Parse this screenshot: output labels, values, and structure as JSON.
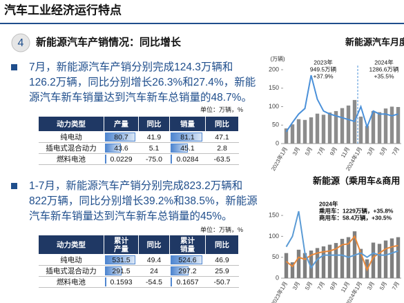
{
  "header": {
    "title": "汽车工业经济运行特点"
  },
  "section": {
    "number": "4",
    "title": "新能源汽车产销情况：同比增长"
  },
  "bullets": [
    {
      "lines": [
        "7月，新能源汽车产销分别完成124.3万辆和",
        "126.2万辆，同比分别增长26.3%和27.4%，新能",
        "源汽车新车销量达到汽车新车总销量的48.7%。"
      ],
      "unit": "单位：万辆，%",
      "table": {
        "columns": [
          "动力类型",
          "产量",
          "同比",
          "销量",
          "同比"
        ],
        "data_bar_columns": [
          1,
          3
        ],
        "rows": [
          [
            "纯电动",
            "80.7",
            "41.9",
            "81.1",
            "47.1"
          ],
          [
            "插电式混合动力",
            "43.6",
            "5.1",
            "45.1",
            "2.8"
          ],
          [
            "燃料电池",
            "0.0229",
            "-75.0",
            "0.0284",
            "-63.5"
          ]
        ]
      }
    },
    {
      "lines": [
        "1-7月，新能源汽车产销分别完成823.2万辆和",
        "822万辆，同比分别增长39.2%和38.5%，新能源",
        "汽车新车销量达到汽车新车总销量的45%。"
      ],
      "unit": "单位：万辆，%",
      "table": {
        "columns": [
          "动力类型",
          "累计产量",
          "同比",
          "累计销量",
          "同比"
        ],
        "data_bar_columns": [
          1,
          3
        ],
        "rows": [
          [
            "纯电动",
            "531.5",
            "49.4",
            "524.6",
            "46.9"
          ],
          [
            "插电式混合动力",
            "291.5",
            "24",
            "297.2",
            "25.9"
          ],
          [
            "燃料电池",
            "0.1593",
            "-54.5",
            "0.1657",
            "-50.7"
          ]
        ]
      }
    }
  ],
  "chart_data": [
    {
      "type": "bar_line",
      "title": "新能源汽车月度",
      "y_label": "(万辆)",
      "annotations": [
        {
          "lines": [
            "2023年",
            "949.5万辆",
            "+37.9%"
          ]
        },
        {
          "lines": [
            "2024年",
            "1286.6万辆",
            "+35.5%"
          ]
        }
      ],
      "categories": [
        "2023年1月",
        null,
        "3月",
        null,
        "5月",
        null,
        "7月",
        null,
        "9月",
        null,
        "11月",
        null,
        "2024年1月",
        null,
        "3月",
        null,
        "5月",
        null,
        "7月"
      ],
      "divider_index": 12,
      "ylim": [
        0,
        200
      ],
      "yticks": [
        0,
        50,
        100,
        150,
        200
      ],
      "series": [
        {
          "type": "bar",
          "color": "#8c8c8c",
          "values": [
            41,
            52,
            66,
            64,
            71,
            81,
            78,
            84,
            88,
            96,
            103,
            118,
            73,
            48,
            88,
            85,
            95,
            100,
            99
          ]
        },
        {
          "type": "line",
          "color": "#4a90d9",
          "values": [
            32,
            57,
            80,
            95,
            185,
            120,
            88,
            80,
            75,
            70,
            65,
            60,
            100,
            45,
            88,
            80,
            80,
            75,
            80
          ]
        }
      ]
    },
    {
      "type": "bar_line",
      "title": "新能源（乘用车&商用",
      "annotations": [
        {
          "lines": [
            "2024年",
            "乘用车：1229万辆，+35.8%",
            "商用车：58.4万辆，+30.5%"
          ]
        }
      ],
      "categories": [
        "2023年1月",
        null,
        "3月",
        null,
        "5月",
        null,
        "7月",
        null,
        "9月",
        null,
        "11月",
        null,
        "2024年1月",
        null,
        "3月",
        null,
        "5月",
        null,
        "7月"
      ],
      "ylim": [
        0,
        170
      ],
      "yticks": [
        0,
        50,
        100,
        150
      ],
      "series": [
        {
          "type": "bar",
          "color": "#7f7f7f",
          "values": [
            60,
            38,
            68,
            60,
            66,
            72,
            76,
            80,
            84,
            94,
            98,
            112,
            70,
            45,
            85,
            82,
            90,
            95,
            98
          ]
        },
        {
          "type": "line",
          "color": "#e8883a",
          "values": [
            40,
            28,
            50,
            45,
            55,
            60,
            63,
            65,
            70,
            80,
            82,
            100,
            60,
            20,
            50,
            60,
            70,
            75,
            78
          ]
        },
        {
          "type": "line",
          "color": "#5b9bd5",
          "values": [
            75,
            100,
            160,
            60,
            25,
            45,
            55,
            55,
            55,
            55,
            50,
            55,
            60,
            50,
            60,
            55,
            55,
            60,
            65
          ]
        }
      ]
    }
  ]
}
